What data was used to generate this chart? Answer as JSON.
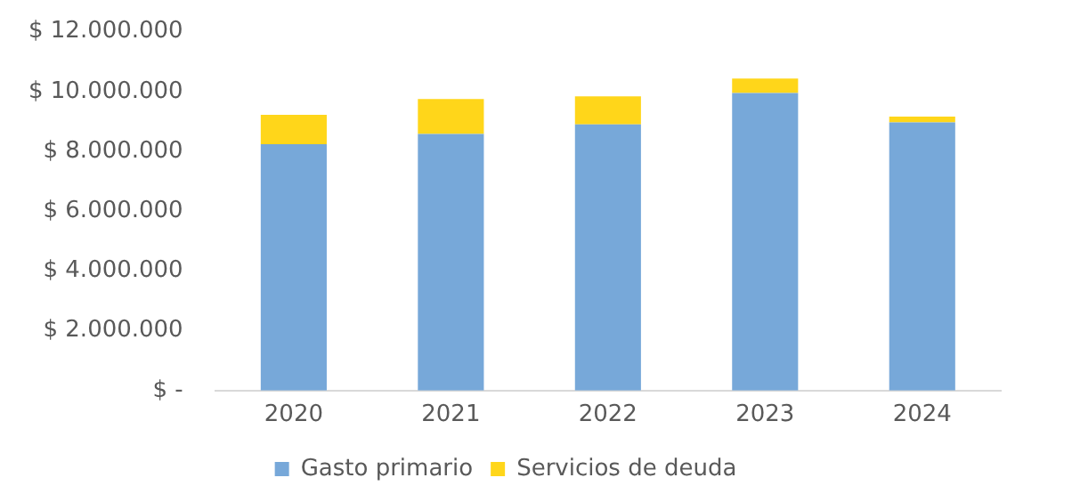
{
  "chart_data": {
    "type": "bar",
    "stacked": true,
    "categories": [
      "2020",
      "2021",
      "2022",
      "2023",
      "2024"
    ],
    "series": [
      {
        "name": "Gasto primario",
        "color": "#77a8d9",
        "values": [
          8240000,
          8580000,
          8900000,
          9950000,
          8970000
        ]
      },
      {
        "name": "Servicios de deuda",
        "color": "#ffd61a",
        "values": [
          980000,
          1170000,
          940000,
          480000,
          190000
        ]
      }
    ],
    "ylim": [
      0,
      12000000
    ],
    "yticks": [
      {
        "value": 0,
        "label": "$ -"
      },
      {
        "value": 2000000,
        "label": "$ 2.000.000"
      },
      {
        "value": 4000000,
        "label": "$ 4.000.000"
      },
      {
        "value": 6000000,
        "label": "$ 6.000.000"
      },
      {
        "value": 8000000,
        "label": "$ 8.000.000"
      },
      {
        "value": 10000000,
        "label": "$ 10.000.000"
      },
      {
        "value": 12000000,
        "label": "$ 12.000.000"
      }
    ],
    "grid": false,
    "legend": "bottom"
  }
}
